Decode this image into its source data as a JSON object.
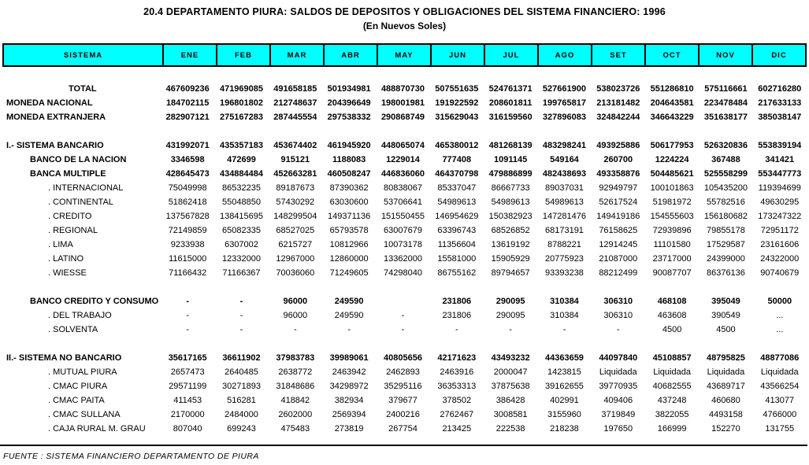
{
  "title": "20.4  DEPARTAMENTO PIURA: SALDOS DE DEPOSITOS Y OBLIGACIONES DEL SISTEMA FINANCIERO: 1996",
  "subtitle": "(En Nuevos Soles)",
  "source": "FUENTE : SISTEMA FINANCIERO DEPARTAMENTO DE PIURA",
  "colors": {
    "header_bg": "#00FFFF",
    "border": "#000000",
    "text": "#000000"
  },
  "columns": [
    "SISTEMA",
    "ENE",
    "FEB",
    "MAR",
    "ABR",
    "MAY",
    "JUN",
    "JUL",
    "AGO",
    "SET",
    "OCT",
    "NOV",
    "DIC"
  ],
  "rows": [
    {
      "label": "TOTAL",
      "level": "t",
      "bold": true,
      "values": [
        "467609236",
        "471969085",
        "491658185",
        "501934981",
        "488870730",
        "507551635",
        "524761371",
        "527661900",
        "538023726",
        "551286810",
        "575116661",
        "602716280"
      ]
    },
    {
      "label": "MONEDA NACIONAL",
      "level": "0",
      "bold": true,
      "values": [
        "184702115",
        "196801802",
        "212748637",
        "204396649",
        "198001981",
        "191922592",
        "208601811",
        "199765817",
        "213181482",
        "204643581",
        "223478484",
        "217633133"
      ]
    },
    {
      "label": "MONEDA EXTRANJERA",
      "level": "0",
      "bold": true,
      "values": [
        "282907121",
        "275167283",
        "287445554",
        "297538332",
        "290868749",
        "315629043",
        "316159560",
        "327896083",
        "324842244",
        "346643229",
        "351638177",
        "385038147"
      ]
    },
    {
      "spacer": true
    },
    {
      "label": "I.- SISTEMA BANCARIO",
      "level": "0",
      "bold": true,
      "values": [
        "431992071",
        "435357183",
        "453674402",
        "461945920",
        "448065074",
        "465380012",
        "481268139",
        "483298241",
        "493925886",
        "506177953",
        "526320836",
        "553839194"
      ]
    },
    {
      "label": "BANCO DE LA NACION",
      "level": "1",
      "bold": true,
      "values": [
        "3346598",
        "472699",
        "915121",
        "1188083",
        "1229014",
        "777408",
        "1091145",
        "549164",
        "260700",
        "1224224",
        "367488",
        "341421"
      ]
    },
    {
      "label": "BANCA MULTIPLE",
      "level": "1",
      "bold": true,
      "values": [
        "428645473",
        "434884484",
        "452663281",
        "460508247",
        "446836060",
        "464370798",
        "479886899",
        "482438693",
        "493358876",
        "504485621",
        "525558299",
        "553447773"
      ]
    },
    {
      "label": ". INTERNACIONAL",
      "level": "2",
      "bold": false,
      "values": [
        "75049998",
        "86532235",
        "89187673",
        "87390362",
        "80838067",
        "85337047",
        "86667733",
        "89037031",
        "92949797",
        "100101863",
        "105435200",
        "119394699"
      ]
    },
    {
      "label": ". CONTINENTAL",
      "level": "2",
      "bold": false,
      "values": [
        "51862418",
        "55048850",
        "57430292",
        "63030600",
        "53706641",
        "54989613",
        "54989613",
        "54989613",
        "52617524",
        "51981972",
        "55782516",
        "49630295"
      ]
    },
    {
      "label": ". CREDITO",
      "level": "2",
      "bold": false,
      "values": [
        "137567828",
        "138415695",
        "148299504",
        "149371136",
        "151550455",
        "146954629",
        "150382923",
        "147281476",
        "149419186",
        "154555603",
        "156180682",
        "173247322"
      ]
    },
    {
      "label": ". REGIONAL",
      "level": "2",
      "bold": false,
      "values": [
        "72149859",
        "65082335",
        "68527025",
        "65793578",
        "63007679",
        "63396743",
        "68526852",
        "68173191",
        "76158625",
        "72939896",
        "79855178",
        "72951172"
      ]
    },
    {
      "label": ". LIMA",
      "level": "2",
      "bold": false,
      "values": [
        "9233938",
        "6307002",
        "6215727",
        "10812966",
        "10073178",
        "11356604",
        "13619192",
        "8788221",
        "12914245",
        "11101580",
        "17529587",
        "23161606"
      ]
    },
    {
      "label": ". LATINO",
      "level": "2",
      "bold": false,
      "values": [
        "11615000",
        "12332000",
        "12967000",
        "12860000",
        "13362000",
        "15581000",
        "15905929",
        "20775923",
        "21087000",
        "23717000",
        "24399000",
        "24322000"
      ]
    },
    {
      "label": ". WIESSE",
      "level": "2",
      "bold": false,
      "values": [
        "71166432",
        "71166367",
        "70036060",
        "71249605",
        "74298040",
        "86755162",
        "89794657",
        "93393238",
        "88212499",
        "90087707",
        "86376136",
        "90740679"
      ]
    },
    {
      "spacer": true
    },
    {
      "label": "BANCO CREDITO  Y CONSUMO",
      "level": "1",
      "bold": true,
      "values": [
        "-",
        "-",
        "96000",
        "249590",
        "",
        "231806",
        "290095",
        "310384",
        "306310",
        "468108",
        "395049",
        "50000"
      ]
    },
    {
      "label": ". DEL TRABAJO",
      "level": "2",
      "bold": false,
      "values": [
        "-",
        "-",
        "96000",
        "249590",
        "-",
        "231806",
        "290095",
        "310384",
        "306310",
        "463608",
        "390549",
        "..."
      ]
    },
    {
      "label": ". SOLVENTA",
      "level": "2",
      "bold": false,
      "values": [
        "-",
        "-",
        "-",
        "-",
        "-",
        "-",
        "-",
        "-",
        "-",
        "4500",
        "4500",
        "..."
      ]
    },
    {
      "spacer": true
    },
    {
      "label": "II.- SISTEMA NO BANCARIO",
      "level": "0",
      "bold": true,
      "values": [
        "35617165",
        "36611902",
        "37983783",
        "39989061",
        "40805656",
        "42171623",
        "43493232",
        "44363659",
        "44097840",
        "45108857",
        "48795825",
        "48877086"
      ]
    },
    {
      "label": ". MUTUAL PIURA",
      "level": "2",
      "bold": false,
      "values": [
        "2657473",
        "2640485",
        "2638772",
        "2463942",
        "2462893",
        "2463916",
        "2000047",
        "1423815",
        "Liquidada",
        "Liquidada",
        "Liquidada",
        "Liquidada"
      ]
    },
    {
      "label": ". CMAC PIURA",
      "level": "2",
      "bold": false,
      "values": [
        "29571199",
        "30271893",
        "31848686",
        "34298972",
        "35295116",
        "36353313",
        "37875638",
        "39162655",
        "39770935",
        "40682555",
        "43689717",
        "43566254"
      ]
    },
    {
      "label": ". CMAC PAITA",
      "level": "2",
      "bold": false,
      "values": [
        "411453",
        "516281",
        "418842",
        "382934",
        "379677",
        "378502",
        "386428",
        "402991",
        "409406",
        "437248",
        "460680",
        "413077"
      ]
    },
    {
      "label": ". CMAC SULLANA",
      "level": "2",
      "bold": false,
      "values": [
        "2170000",
        "2484000",
        "2602000",
        "2569394",
        "2400216",
        "2762467",
        "3008581",
        "3155960",
        "3719849",
        "3822055",
        "4493158",
        "4766000"
      ]
    },
    {
      "label": ". CAJA RURAL M. GRAU",
      "level": "2",
      "bold": false,
      "values": [
        "807040",
        "699243",
        "475483",
        "273819",
        "267754",
        "213425",
        "222538",
        "218238",
        "197650",
        "166999",
        "152270",
        "131755"
      ]
    }
  ]
}
